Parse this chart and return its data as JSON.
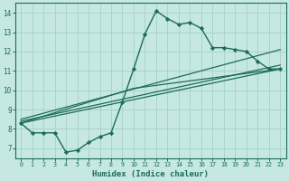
{
  "xlabel": "Humidex (Indice chaleur)",
  "bg_color": "#c5e8e2",
  "axis_bg_color": "#c5e8e2",
  "grid_color": "#a8d0ca",
  "line_color": "#1e6b5c",
  "spine_color": "#1e6b5c",
  "xlabel_bg": "#2d7a68",
  "xlim": [
    -0.5,
    23.5
  ],
  "ylim": [
    6.5,
    14.5
  ],
  "xticks": [
    0,
    1,
    2,
    3,
    4,
    5,
    6,
    7,
    8,
    9,
    10,
    11,
    12,
    13,
    14,
    15,
    16,
    17,
    18,
    19,
    20,
    21,
    22,
    23
  ],
  "yticks": [
    7,
    8,
    9,
    10,
    11,
    12,
    13,
    14
  ],
  "main_x": [
    0,
    1,
    2,
    3,
    4,
    5,
    6,
    7,
    8,
    9,
    10,
    11,
    12,
    13,
    14,
    15,
    16,
    17,
    18,
    19,
    20,
    21,
    22,
    23
  ],
  "main_y": [
    8.3,
    7.8,
    7.8,
    7.8,
    6.8,
    6.9,
    7.3,
    7.6,
    7.8,
    9.4,
    11.1,
    12.9,
    14.1,
    13.7,
    13.4,
    13.5,
    13.2,
    12.2,
    12.2,
    12.1,
    12.0,
    11.5,
    11.1,
    11.1
  ],
  "trend1_x": [
    0,
    23
  ],
  "trend1_y": [
    8.3,
    11.1
  ],
  "trend2_x": [
    0,
    23
  ],
  "trend2_y": [
    8.3,
    11.1
  ],
  "trend3_x": [
    0,
    10,
    23
  ],
  "trend3_y": [
    8.3,
    10.1,
    11.1
  ],
  "trend4_x": [
    0,
    23
  ],
  "trend4_y": [
    8.5,
    12.1
  ]
}
